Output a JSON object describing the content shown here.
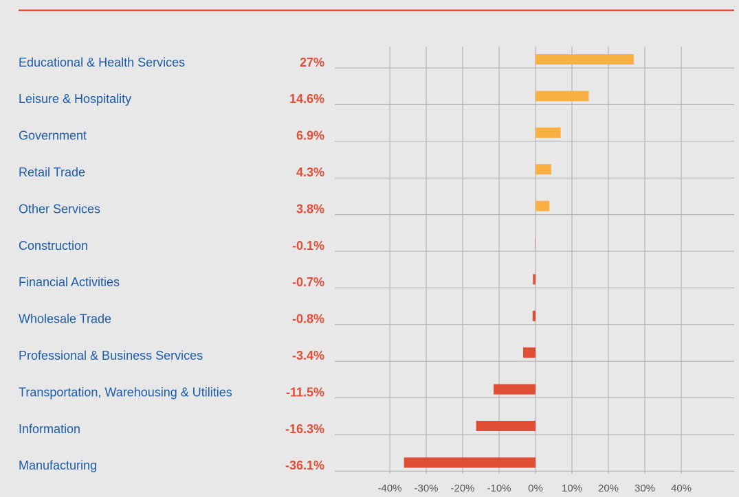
{
  "chart_data": {
    "type": "bar",
    "orientation": "horizontal",
    "categories": [
      "Educational & Health Services",
      "Leisure & Hospitality",
      "Government",
      "Retail Trade",
      "Other Services",
      "Construction",
      "Financial Activities",
      "Wholesale Trade",
      "Professional & Business Services",
      "Transportation, Warehousing & Utilities",
      "Information",
      "Manufacturing"
    ],
    "values": [
      27,
      14.6,
      6.9,
      4.3,
      3.8,
      -0.1,
      -0.7,
      -0.8,
      -3.4,
      -11.5,
      -16.3,
      -36.1
    ],
    "value_labels": [
      "27%",
      "14.6%",
      "6.9%",
      "4.3%",
      "3.8%",
      "-0.1%",
      "-0.7%",
      "-0.8%",
      "-3.4%",
      "-11.5%",
      "-16.3%",
      "-36.1%"
    ],
    "positive_color": "#f9b042",
    "negative_color": "#e04e36",
    "xlim": [
      -40,
      40
    ],
    "xticks": [
      {
        "value": -40,
        "label": "-40%"
      },
      {
        "value": -30,
        "label": "-30%"
      },
      {
        "value": -20,
        "label": "-20%"
      },
      {
        "value": -10,
        "label": "-10%"
      },
      {
        "value": 0,
        "label": "0%"
      },
      {
        "value": 10,
        "label": "10%"
      },
      {
        "value": 20,
        "label": "20%"
      },
      {
        "value": 30,
        "label": "30%"
      },
      {
        "value": 40,
        "label": "40%"
      }
    ],
    "grid": true
  }
}
